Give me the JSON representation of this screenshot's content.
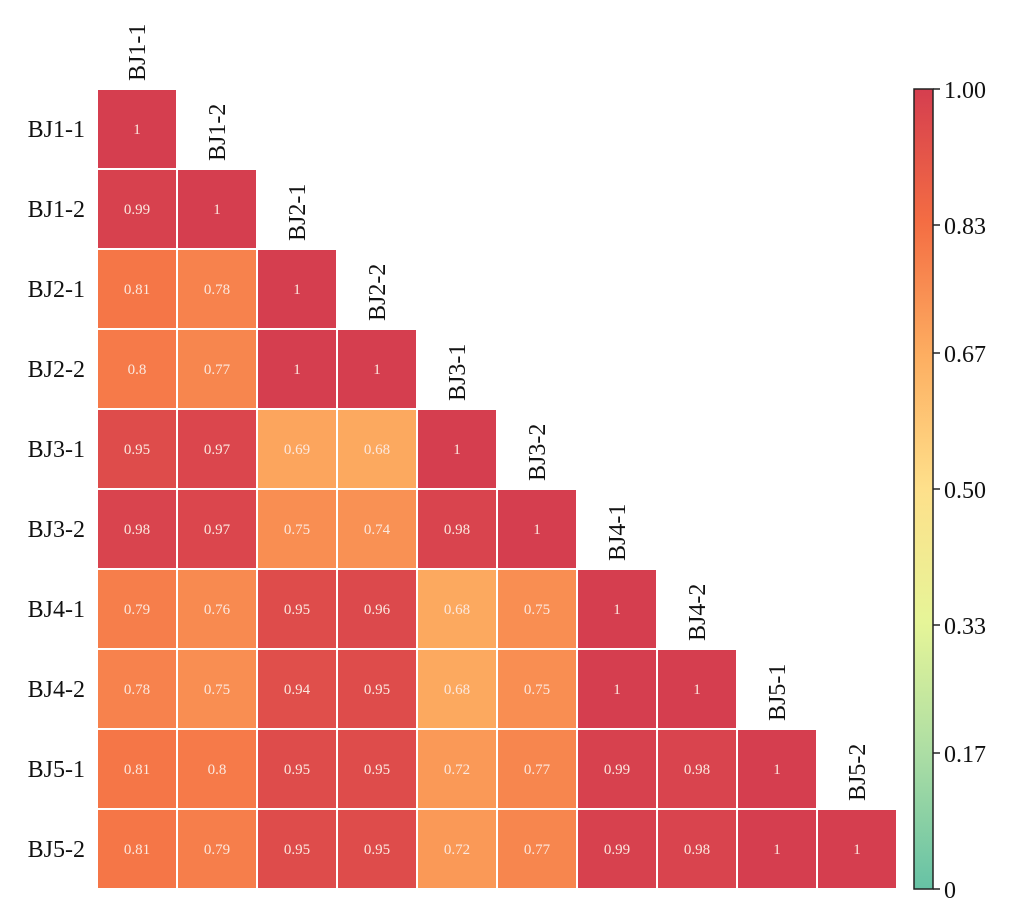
{
  "chart_data": {
    "type": "heatmap",
    "title": "",
    "labels": [
      "BJ1-1",
      "BJ1-2",
      "BJ2-1",
      "BJ2-2",
      "BJ3-1",
      "BJ3-2",
      "BJ4-1",
      "BJ4-2",
      "BJ5-1",
      "BJ5-2"
    ],
    "matrix": [
      [
        1
      ],
      [
        0.99,
        1
      ],
      [
        0.81,
        0.78,
        1
      ],
      [
        0.8,
        0.77,
        1,
        1
      ],
      [
        0.95,
        0.97,
        0.69,
        0.68,
        1
      ],
      [
        0.98,
        0.97,
        0.75,
        0.74,
        0.98,
        1
      ],
      [
        0.79,
        0.76,
        0.95,
        0.96,
        0.68,
        0.75,
        1
      ],
      [
        0.78,
        0.75,
        0.94,
        0.95,
        0.68,
        0.75,
        1,
        1
      ],
      [
        0.81,
        0.8,
        0.95,
        0.95,
        0.72,
        0.77,
        0.99,
        0.98,
        1
      ],
      [
        0.81,
        0.79,
        0.95,
        0.95,
        0.72,
        0.77,
        0.99,
        0.98,
        1,
        1
      ]
    ],
    "triangle": "lower",
    "colorbar": {
      "range": [
        0,
        1
      ],
      "ticks": [
        1.0,
        0.83,
        0.67,
        0.5,
        0.33,
        0.17,
        0
      ],
      "tick_labels": [
        "1.00",
        "0.83",
        "0.67",
        "0.50",
        "0.33",
        "0.17",
        "0"
      ],
      "colors": [
        "#66c2a5",
        "#abdda4",
        "#e6f598",
        "#fee08b",
        "#fdae61",
        "#f46d43",
        "#d53e4f"
      ],
      "position": "right"
    }
  }
}
